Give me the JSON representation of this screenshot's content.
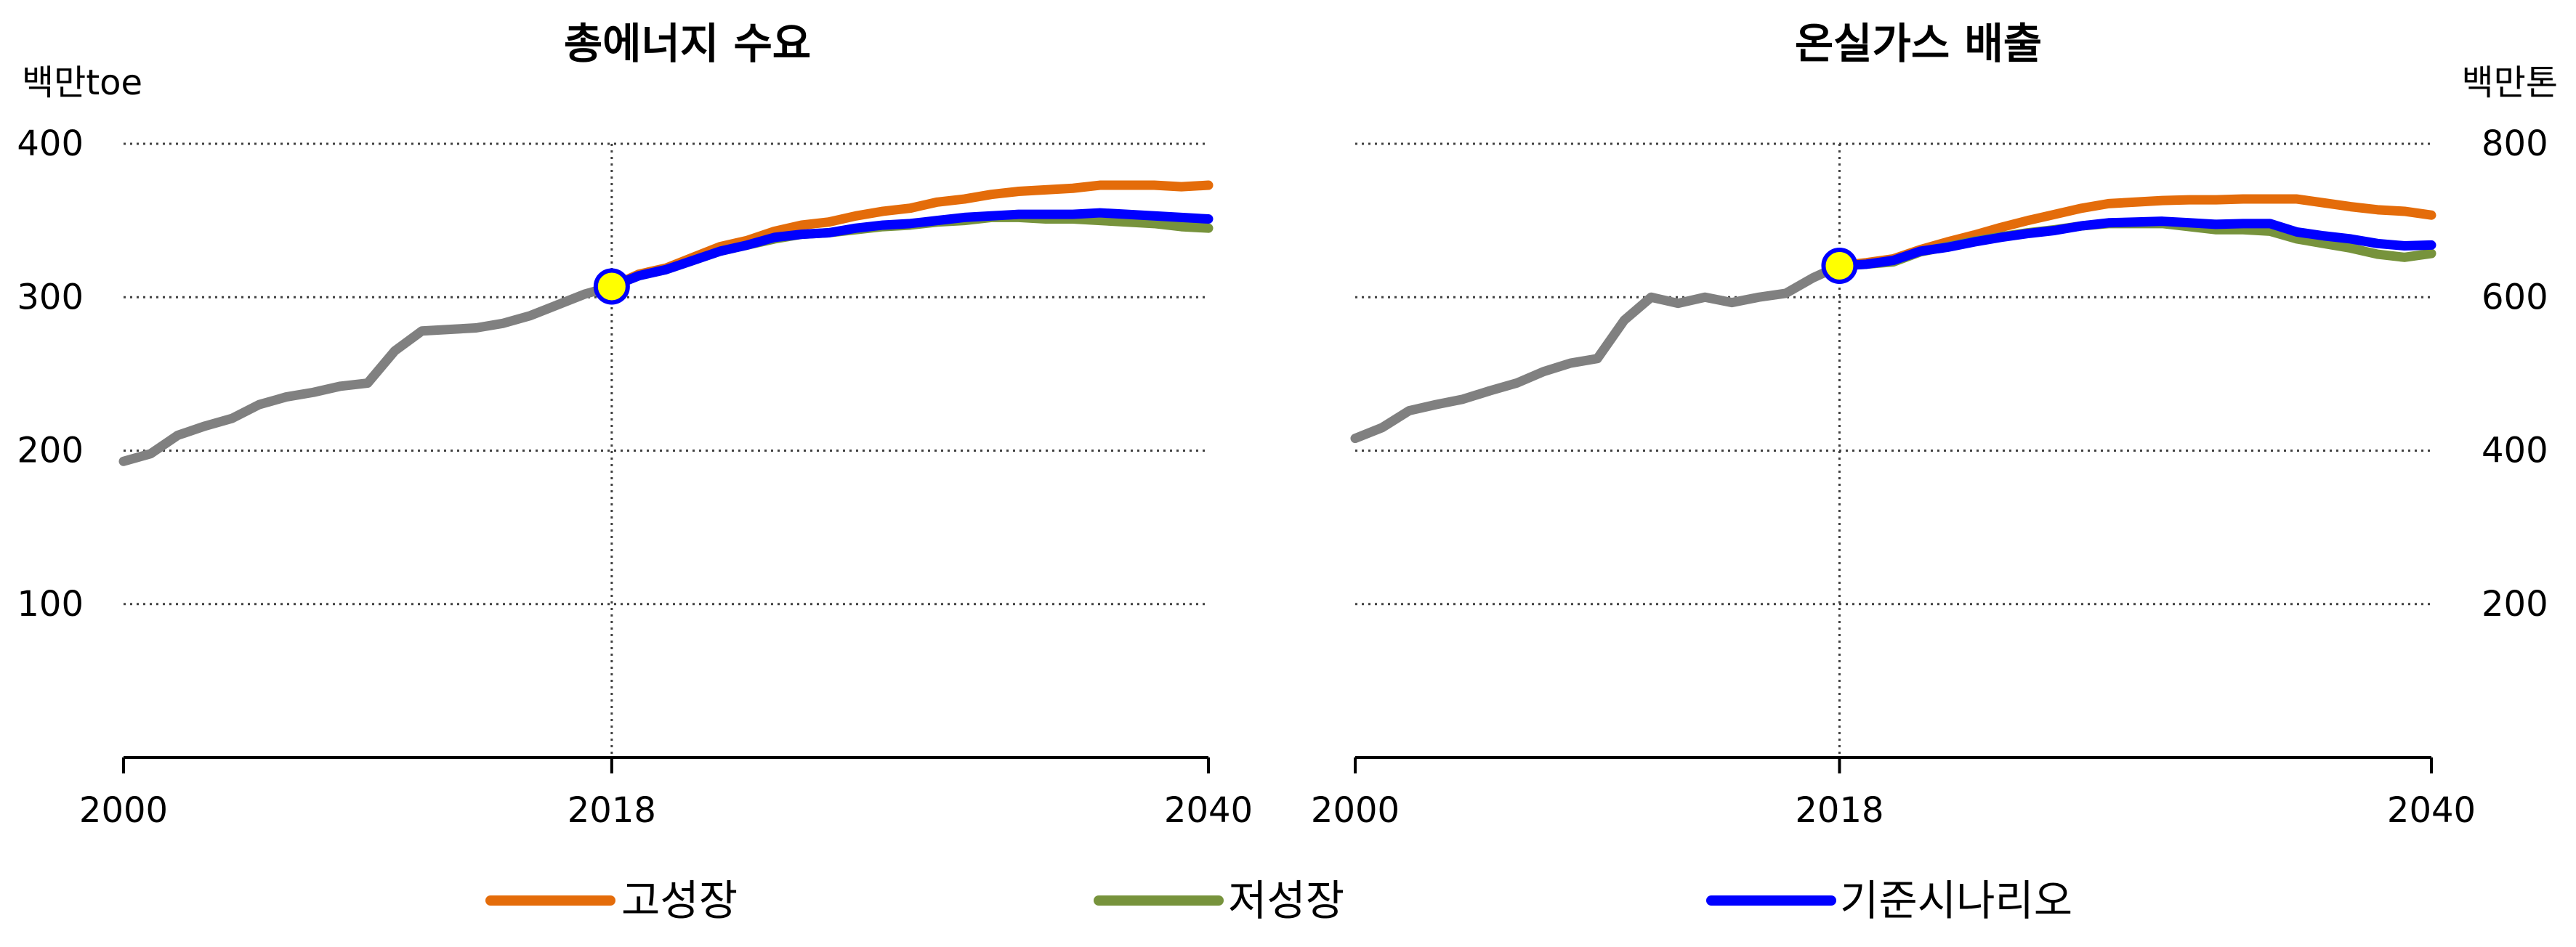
{
  "legend": [
    {
      "key": "high",
      "label": "고성장",
      "color": "#E46C0A"
    },
    {
      "key": "low",
      "label": "저성장",
      "color": "#77933C"
    },
    {
      "key": "base",
      "label": "기준시나리오",
      "color": "#0000FF"
    }
  ],
  "colors": {
    "history": "#808080",
    "marker_fill": "#FFFF00",
    "marker_stroke": "#0000FF",
    "gridline": "#404040"
  },
  "chart_data": [
    {
      "type": "line",
      "title": "총에너지 수요",
      "ylabel": "백만toe",
      "ylabel_side": "left",
      "xlim": [
        2000,
        2040
      ],
      "ylim": [
        0,
        400
      ],
      "x_ticks": [
        2000,
        2018,
        2040
      ],
      "y_ticks": [
        100,
        200,
        300,
        400
      ],
      "grid": "horizontal-dotted",
      "marker": {
        "x": 2018,
        "y": 307
      },
      "history": {
        "x": [
          2000,
          2001,
          2002,
          2003,
          2004,
          2005,
          2006,
          2007,
          2008,
          2009,
          2010,
          2011,
          2012,
          2013,
          2014,
          2015,
          2016,
          2017,
          2018
        ],
        "y": [
          193,
          198,
          210,
          216,
          221,
          230,
          235,
          238,
          242,
          244,
          265,
          278,
          279,
          280,
          283,
          288,
          295,
          302,
          307
        ]
      },
      "series": [
        {
          "key": "high",
          "x": [
            2018,
            2019,
            2020,
            2021,
            2022,
            2023,
            2024,
            2025,
            2026,
            2027,
            2028,
            2029,
            2030,
            2031,
            2032,
            2033,
            2034,
            2035,
            2036,
            2037,
            2038,
            2039,
            2040
          ],
          "y": [
            307,
            315,
            319,
            326,
            333,
            337,
            343,
            347,
            349,
            353,
            356,
            358,
            362,
            364,
            367,
            369,
            370,
            371,
            373,
            373,
            373,
            372,
            373
          ]
        },
        {
          "key": "low",
          "x": [
            2018,
            2019,
            2020,
            2021,
            2022,
            2023,
            2024,
            2025,
            2026,
            2027,
            2028,
            2029,
            2030,
            2031,
            2032,
            2033,
            2034,
            2035,
            2036,
            2037,
            2038,
            2039,
            2040
          ],
          "y": [
            307,
            314,
            318,
            324,
            330,
            334,
            338,
            341,
            342,
            344,
            346,
            347,
            349,
            350,
            352,
            352,
            351,
            351,
            350,
            349,
            348,
            346,
            345
          ]
        },
        {
          "key": "base",
          "x": [
            2018,
            2019,
            2020,
            2021,
            2022,
            2023,
            2024,
            2025,
            2026,
            2027,
            2028,
            2029,
            2030,
            2031,
            2032,
            2033,
            2034,
            2035,
            2036,
            2037,
            2038,
            2039,
            2040
          ],
          "y": [
            307,
            314,
            318,
            324,
            330,
            334,
            339,
            341,
            342,
            345,
            347,
            348,
            350,
            352,
            353,
            354,
            354,
            354,
            355,
            354,
            353,
            352,
            351
          ]
        }
      ]
    },
    {
      "type": "line",
      "title": "온실가스 배출",
      "ylabel": "백만톤",
      "ylabel_side": "right",
      "xlim": [
        2000,
        2040
      ],
      "ylim": [
        0,
        800
      ],
      "x_ticks": [
        2000,
        2018,
        2040
      ],
      "y_ticks": [
        200,
        400,
        600,
        800
      ],
      "grid": "horizontal-dotted",
      "marker": {
        "x": 2018,
        "y": 641
      },
      "history": {
        "x": [
          2000,
          2001,
          2002,
          2003,
          2004,
          2005,
          2006,
          2007,
          2008,
          2009,
          2010,
          2011,
          2012,
          2013,
          2014,
          2015,
          2016,
          2017,
          2018
        ],
        "y": [
          416,
          430,
          452,
          460,
          467,
          478,
          488,
          503,
          514,
          520,
          570,
          600,
          592,
          600,
          593,
          600,
          605,
          625,
          641
        ]
      },
      "series": [
        {
          "key": "high",
          "x": [
            2018,
            2019,
            2020,
            2021,
            2022,
            2023,
            2024,
            2025,
            2026,
            2027,
            2028,
            2029,
            2030,
            2031,
            2032,
            2033,
            2034,
            2035,
            2036,
            2037,
            2038,
            2039,
            2040
          ],
          "y": [
            641,
            645,
            650,
            662,
            672,
            681,
            691,
            700,
            708,
            716,
            722,
            724,
            726,
            727,
            727,
            728,
            728,
            728,
            723,
            718,
            714,
            712,
            707
          ]
        },
        {
          "key": "low",
          "x": [
            2018,
            2019,
            2020,
            2021,
            2022,
            2023,
            2024,
            2025,
            2026,
            2027,
            2028,
            2029,
            2030,
            2031,
            2032,
            2033,
            2034,
            2035,
            2036,
            2037,
            2038,
            2039,
            2040
          ],
          "y": [
            641,
            643,
            646,
            659,
            666,
            673,
            679,
            684,
            688,
            693,
            696,
            696,
            696,
            692,
            688,
            688,
            686,
            676,
            670,
            664,
            656,
            652,
            657
          ]
        },
        {
          "key": "base",
          "x": [
            2018,
            2019,
            2020,
            2021,
            2022,
            2023,
            2024,
            2025,
            2026,
            2027,
            2028,
            2029,
            2030,
            2031,
            2032,
            2033,
            2034,
            2035,
            2036,
            2037,
            2038,
            2039,
            2040
          ],
          "y": [
            641,
            643,
            648,
            660,
            665,
            672,
            678,
            683,
            687,
            693,
            697,
            698,
            699,
            697,
            695,
            696,
            696,
            685,
            680,
            676,
            670,
            667,
            668
          ]
        }
      ]
    }
  ]
}
